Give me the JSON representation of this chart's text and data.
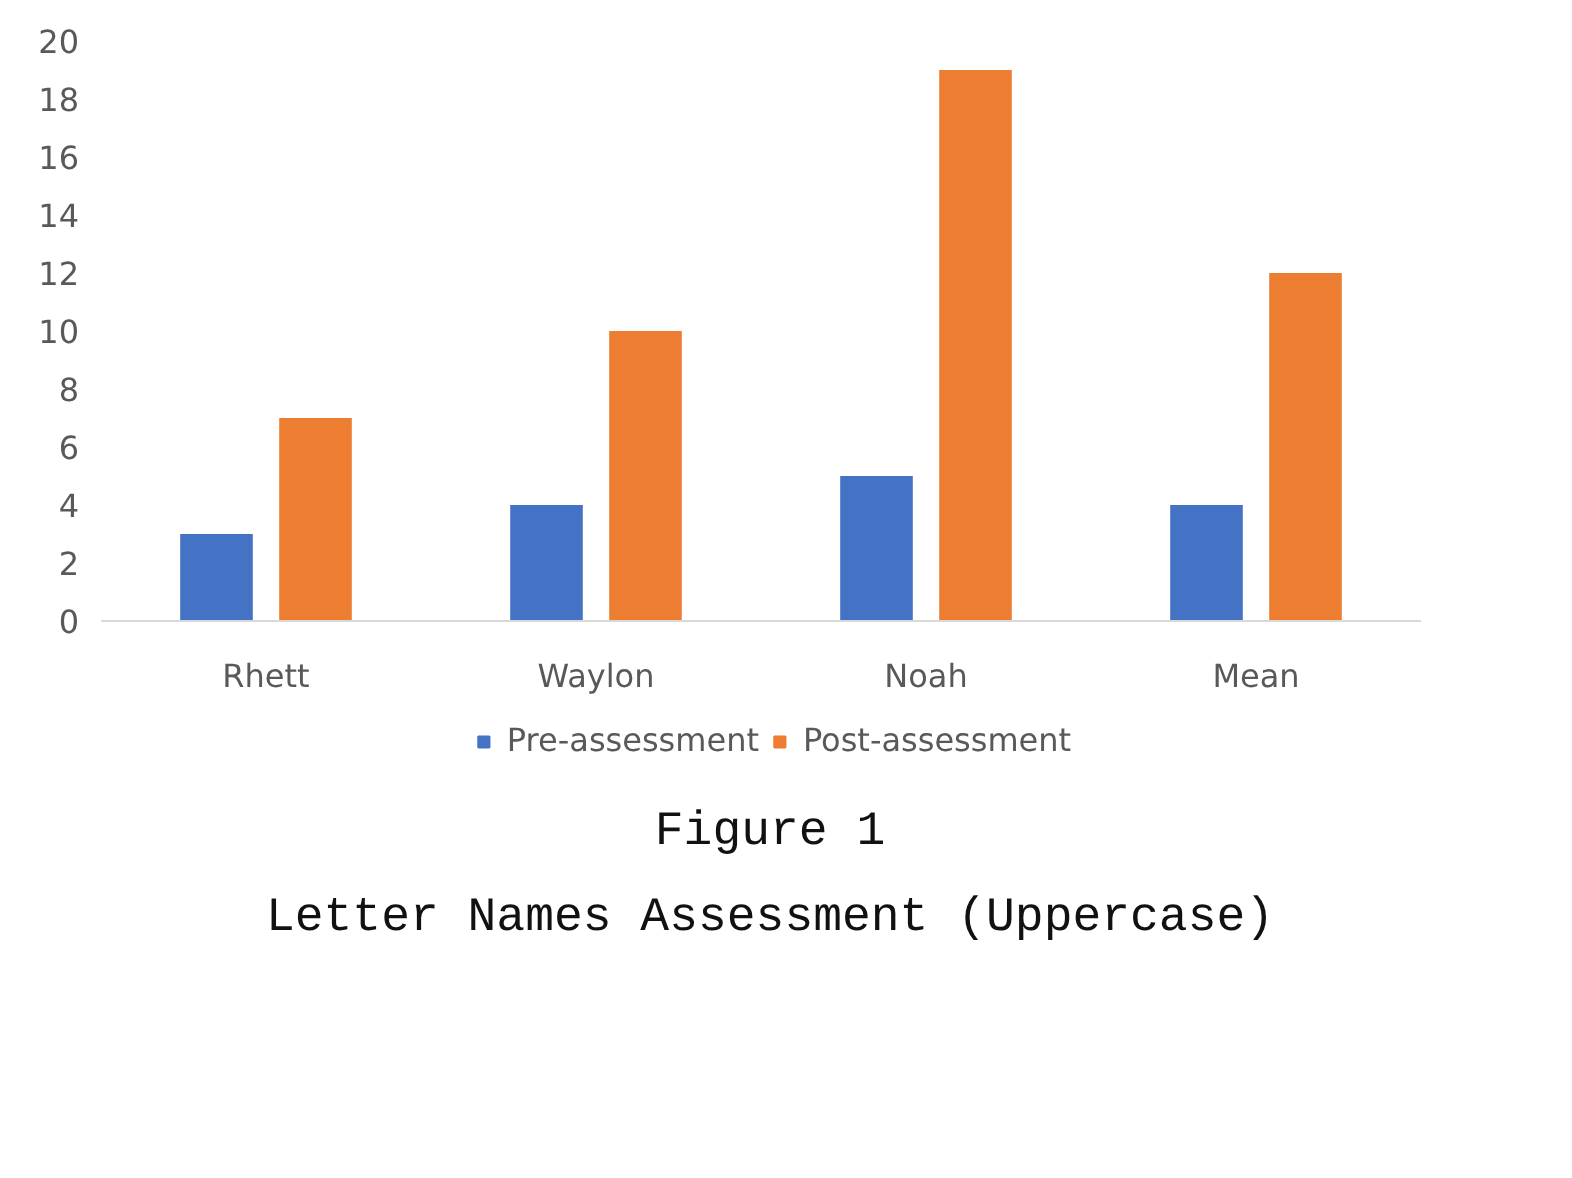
{
  "chart_data": {
    "type": "bar",
    "title": "Figure 1",
    "subtitle": "Letter Names Assessment (Uppercase)",
    "categories": [
      "Rhett",
      "Waylon",
      "Noah",
      "Mean"
    ],
    "series": [
      {
        "name": "Pre-assessment",
        "color": "#4472c4",
        "values": [
          3,
          4,
          5,
          4
        ]
      },
      {
        "name": "Post-assessment",
        "color": "#ed7d31",
        "values": [
          7,
          10,
          19,
          12
        ]
      }
    ],
    "ylim": [
      0,
      20
    ],
    "yticks": [
      0,
      2,
      4,
      6,
      8,
      10,
      12,
      14,
      16,
      18,
      20
    ],
    "grid": false,
    "legend": "bottom"
  }
}
